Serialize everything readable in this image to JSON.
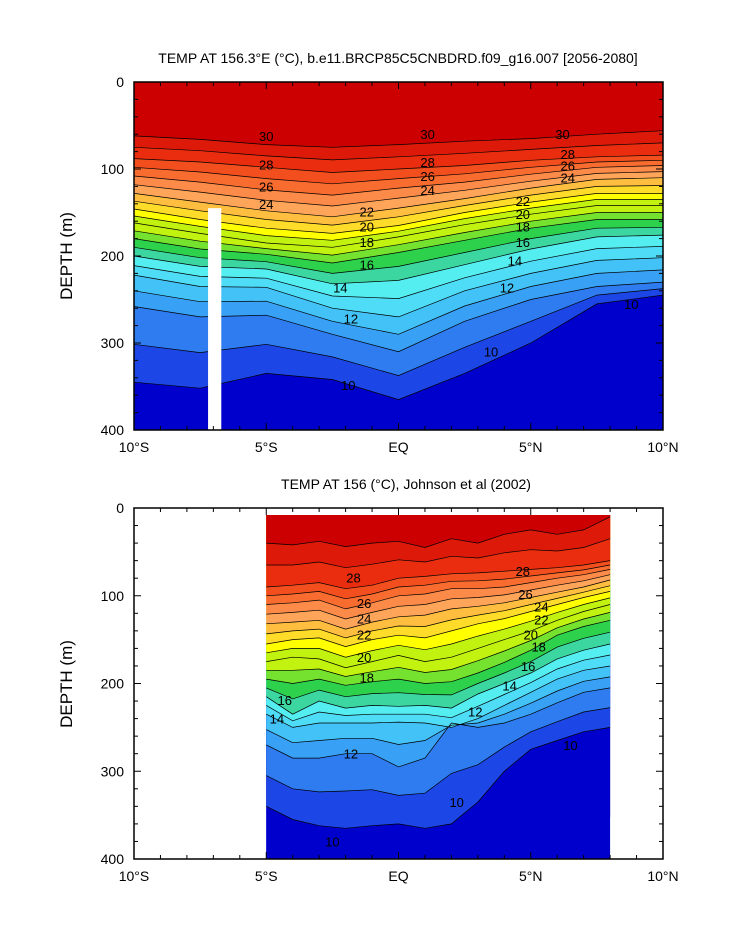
{
  "colors": {
    "palette": [
      "#0000cd",
      "#1c46e6",
      "#2e7cf0",
      "#38a0f5",
      "#43c2f7",
      "#4fdcf7",
      "#55eef0",
      "#3cd7a0",
      "#2dd14c",
      "#74e22e",
      "#c2f20f",
      "#ffff00",
      "#ffdc29",
      "#ffbe3f",
      "#fea55a",
      "#fc8a48",
      "#f96c30",
      "#f34f1e",
      "#ea2d0e",
      "#dd1a0a",
      "#cc0000"
    ],
    "line": "#000000",
    "background": "#ffffff",
    "gap": "#ffffff"
  },
  "chart_data": [
    {
      "type": "contour",
      "title": "TEMP AT 156.3°E (°C), b.e11.BRCP85C5CNBDRD.f09_g16.007 [2056-2080]",
      "ylabel": "DEPTH (m)",
      "xlim": [
        -10,
        10
      ],
      "ylim": [
        400,
        0
      ],
      "y_reversed": true,
      "x_ticks": [
        -10,
        -5,
        0,
        5,
        10
      ],
      "x_tick_labels": [
        "10°S",
        "5°S",
        "EQ",
        "5°N",
        "10°N"
      ],
      "y_ticks": [
        0,
        100,
        200,
        300,
        400
      ],
      "y_tick_labels": [
        "0",
        "100",
        "200",
        "300",
        "400"
      ],
      "data_extent_x": [
        -10,
        10
      ],
      "data_gap_x": [
        -7.2,
        -6.7
      ],
      "data_gap_ymin": 145,
      "contour_interval_degC": 1,
      "isotherm_depths": {
        "x": [
          -10,
          -7.5,
          -5,
          -2.5,
          0,
          2.5,
          5,
          7.5,
          10
        ],
        "levels": [
          30,
          28,
          26,
          24,
          22,
          20,
          18,
          16,
          14,
          12,
          10
        ],
        "depths": [
          [
            62,
            66,
            72,
            75,
            72,
            68,
            65,
            60,
            56
          ],
          [
            88,
            92,
            98,
            104,
            100,
            96,
            90,
            86,
            84
          ],
          [
            108,
            115,
            124,
            130,
            122,
            115,
            106,
            98,
            96
          ],
          [
            128,
            138,
            148,
            155,
            145,
            134,
            122,
            112,
            110
          ],
          [
            146,
            158,
            168,
            174,
            165,
            150,
            138,
            128,
            128
          ],
          [
            162,
            174,
            185,
            190,
            178,
            164,
            152,
            142,
            142
          ],
          [
            180,
            192,
            198,
            208,
            196,
            182,
            168,
            158,
            158
          ],
          [
            200,
            212,
            215,
            232,
            228,
            210,
            192,
            178,
            176
          ],
          [
            222,
            235,
            236,
            260,
            270,
            240,
            220,
            205,
            202
          ],
          [
            258,
            270,
            268,
            290,
            310,
            275,
            250,
            235,
            230
          ],
          [
            345,
            352,
            335,
            342,
            365,
            335,
            300,
            255,
            245
          ]
        ]
      },
      "contour_labels": [
        {
          "value": "30",
          "x": -5,
          "y": 62
        },
        {
          "value": "30",
          "x": 1.1,
          "y": 60
        },
        {
          "value": "30",
          "x": 6.2,
          "y": 60
        },
        {
          "value": "28",
          "x": -5,
          "y": 95
        },
        {
          "value": "28",
          "x": 1.1,
          "y": 92
        },
        {
          "value": "28",
          "x": 6.4,
          "y": 83
        },
        {
          "value": "26",
          "x": -5,
          "y": 120
        },
        {
          "value": "26",
          "x": 1.1,
          "y": 108
        },
        {
          "value": "26",
          "x": 6.4,
          "y": 96
        },
        {
          "value": "24",
          "x": -5,
          "y": 140
        },
        {
          "value": "24",
          "x": 1.1,
          "y": 124
        },
        {
          "value": "24",
          "x": 6.4,
          "y": 110
        },
        {
          "value": "22",
          "x": -1.2,
          "y": 149
        },
        {
          "value": "22",
          "x": 4.7,
          "y": 137
        },
        {
          "value": "20",
          "x": -1.2,
          "y": 166
        },
        {
          "value": "20",
          "x": 4.7,
          "y": 152
        },
        {
          "value": "18",
          "x": -1.2,
          "y": 184
        },
        {
          "value": "18",
          "x": 4.7,
          "y": 166
        },
        {
          "value": "16",
          "x": -1.2,
          "y": 210
        },
        {
          "value": "16",
          "x": 4.7,
          "y": 184
        },
        {
          "value": "14",
          "x": -2.2,
          "y": 236
        },
        {
          "value": "14",
          "x": 4.4,
          "y": 205
        },
        {
          "value": "12",
          "x": -1.8,
          "y": 272
        },
        {
          "value": "12",
          "x": 4.1,
          "y": 236
        },
        {
          "value": "10",
          "x": 3.5,
          "y": 310
        },
        {
          "value": "10",
          "x": -1.9,
          "y": 348
        },
        {
          "value": "10",
          "x": 8.8,
          "y": 255
        }
      ]
    },
    {
      "type": "contour",
      "title": "TEMP AT 156 (°C), Johnson et al (2002)",
      "ylabel": "DEPTH (m)",
      "xlim": [
        -10,
        10
      ],
      "ylim": [
        400,
        0
      ],
      "y_reversed": true,
      "x_ticks": [
        -10,
        -5,
        0,
        5,
        10
      ],
      "x_tick_labels": [
        "10°S",
        "5°S",
        "EQ",
        "5°N",
        "10°N"
      ],
      "y_ticks": [
        0,
        100,
        200,
        300,
        400
      ],
      "y_tick_labels": [
        "0",
        "100",
        "200",
        "300",
        "400"
      ],
      "data_extent_x": [
        -5,
        8
      ],
      "data_extent_y": [
        8,
        400
      ],
      "contour_interval_degC": 1,
      "isotherm_depths": {
        "x": [
          -5,
          -4,
          -3,
          -2,
          -1,
          0,
          1,
          2,
          3,
          4,
          5,
          6,
          7,
          8
        ],
        "levels": [
          30,
          28,
          26,
          24,
          22,
          20,
          18,
          16,
          14,
          12,
          10
        ],
        "depths": [
          [
            40,
            42,
            38,
            44,
            40,
            38,
            45,
            35,
            40,
            30,
            25,
            30,
            25,
            10
          ],
          [
            90,
            88,
            85,
            92,
            88,
            80,
            78,
            75,
            74,
            72,
            70,
            68,
            65,
            60
          ],
          [
            110,
            108,
            105,
            115,
            108,
            100,
            98,
            92,
            92,
            90,
            85,
            80,
            76,
            70
          ],
          [
            132,
            130,
            128,
            138,
            130,
            124,
            122,
            115,
            112,
            108,
            102,
            96,
            90,
            82
          ],
          [
            155,
            150,
            148,
            158,
            150,
            145,
            148,
            140,
            132,
            126,
            118,
            110,
            102,
            95
          ],
          [
            175,
            170,
            172,
            182,
            175,
            168,
            175,
            170,
            160,
            150,
            140,
            128,
            118,
            110
          ],
          [
            195,
            200,
            195,
            202,
            198,
            195,
            200,
            198,
            188,
            176,
            162,
            145,
            135,
            128
          ],
          [
            215,
            235,
            220,
            228,
            225,
            226,
            225,
            228,
            212,
            200,
            188,
            172,
            162,
            155
          ],
          [
            235,
            250,
            245,
            245,
            245,
            244,
            245,
            250,
            240,
            225,
            210,
            195,
            185,
            180
          ],
          [
            270,
            285,
            285,
            280,
            280,
            295,
            285,
            245,
            250,
            245,
            235,
            222,
            210,
            205
          ],
          [
            340,
            355,
            362,
            365,
            362,
            360,
            365,
            360,
            335,
            300,
            275,
            265,
            255,
            250
          ]
        ]
      },
      "contour_labels": [
        {
          "value": "28",
          "x": -1.7,
          "y": 79
        },
        {
          "value": "28",
          "x": 4.7,
          "y": 72
        },
        {
          "value": "26",
          "x": -1.3,
          "y": 108
        },
        {
          "value": "26",
          "x": 4.8,
          "y": 98
        },
        {
          "value": "24",
          "x": -1.3,
          "y": 126
        },
        {
          "value": "24",
          "x": 5.4,
          "y": 112
        },
        {
          "value": "22",
          "x": -1.3,
          "y": 144
        },
        {
          "value": "22",
          "x": 5.4,
          "y": 127
        },
        {
          "value": "20",
          "x": -1.3,
          "y": 170
        },
        {
          "value": "20",
          "x": 5.0,
          "y": 144
        },
        {
          "value": "18",
          "x": -1.2,
          "y": 193
        },
        {
          "value": "18",
          "x": 5.3,
          "y": 158
        },
        {
          "value": "16",
          "x": -4.3,
          "y": 219
        },
        {
          "value": "16",
          "x": 4.9,
          "y": 180
        },
        {
          "value": "14",
          "x": -4.6,
          "y": 240
        },
        {
          "value": "14",
          "x": 4.2,
          "y": 202
        },
        {
          "value": "12",
          "x": -1.8,
          "y": 280
        },
        {
          "value": "12",
          "x": 2.9,
          "y": 232
        },
        {
          "value": "10",
          "x": 2.2,
          "y": 335
        },
        {
          "value": "10",
          "x": -2.5,
          "y": 380
        },
        {
          "value": "10",
          "x": 6.5,
          "y": 270
        }
      ]
    }
  ]
}
